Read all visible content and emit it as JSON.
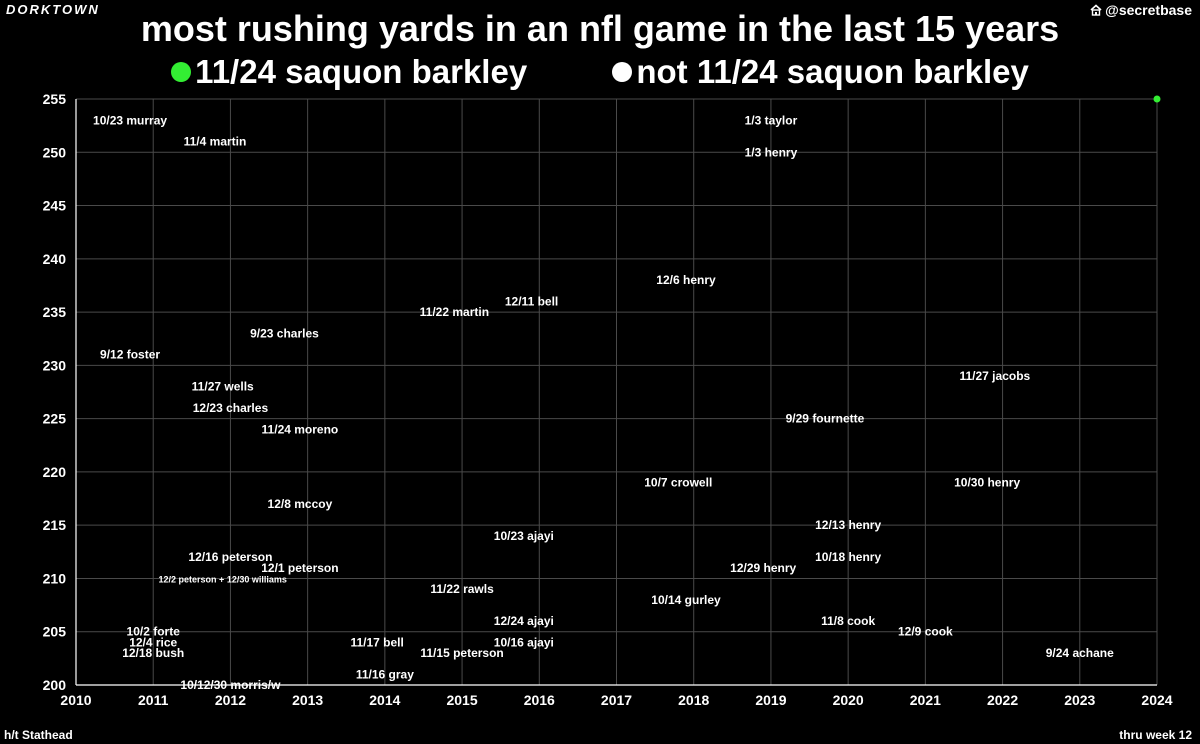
{
  "header": {
    "brand": "DORKTOWN",
    "handle": "@secretbase",
    "handle_icon": "house-icon"
  },
  "footer": {
    "left": "h/t Stathead",
    "right": "thru week 12"
  },
  "colors": {
    "background": "#000000",
    "highlight": "#33ee33",
    "other": "#ffffff",
    "grid": "#4a4a4a"
  },
  "chart_data": {
    "type": "scatter",
    "title": "most rushing yards in an nfl game in the last 15 years",
    "xlabel": "",
    "ylabel": "",
    "xlim": [
      2010,
      2024
    ],
    "ylim": [
      200,
      255
    ],
    "xticks": [
      "2010",
      "2011",
      "2012",
      "2013",
      "2014",
      "2015",
      "2016",
      "2017",
      "2018",
      "2019",
      "2020",
      "2021",
      "2022",
      "2023",
      "2024"
    ],
    "yticks": [
      "200",
      "205",
      "210",
      "215",
      "220",
      "225",
      "230",
      "235",
      "240",
      "245",
      "250",
      "255"
    ],
    "grid": true,
    "legend": [
      {
        "label": "11/24 saquon barkley",
        "color": "#33ee33"
      },
      {
        "label": "not 11/24 saquon barkley",
        "color": "#ffffff"
      }
    ],
    "series": [
      {
        "name": "11/24 saquon barkley",
        "points": [
          {
            "x": 2024.0,
            "y": 255,
            "label": ""
          }
        ]
      },
      {
        "name": "not 11/24 saquon barkley",
        "points": [
          {
            "x": 2010.7,
            "y": 253,
            "label": "10/23 murray"
          },
          {
            "x": 2011.8,
            "y": 251,
            "label": "11/4 martin"
          },
          {
            "x": 2019.0,
            "y": 253,
            "label": "1/3 taylor"
          },
          {
            "x": 2019.0,
            "y": 250,
            "label": "1/3 henry"
          },
          {
            "x": 2017.9,
            "y": 238,
            "label": "12/6 henry"
          },
          {
            "x": 2015.9,
            "y": 236,
            "label": "12/11 bell"
          },
          {
            "x": 2014.9,
            "y": 235,
            "label": "11/22 martin"
          },
          {
            "x": 2012.7,
            "y": 233,
            "label": "9/23 charles"
          },
          {
            "x": 2010.7,
            "y": 231,
            "label": "9/12 foster"
          },
          {
            "x": 2011.9,
            "y": 228,
            "label": "11/27 wells"
          },
          {
            "x": 2021.9,
            "y": 229,
            "label": "11/27 jacobs"
          },
          {
            "x": 2012.0,
            "y": 226,
            "label": "12/23 charles"
          },
          {
            "x": 2019.7,
            "y": 225,
            "label": "9/29 fournette"
          },
          {
            "x": 2012.9,
            "y": 224,
            "label": "11/24 moreno"
          },
          {
            "x": 2017.8,
            "y": 219,
            "label": "10/7 crowell"
          },
          {
            "x": 2021.8,
            "y": 219,
            "label": "10/30 henry"
          },
          {
            "x": 2012.9,
            "y": 217,
            "label": "12/8 mccoy"
          },
          {
            "x": 2020.0,
            "y": 215,
            "label": "12/13 henry"
          },
          {
            "x": 2015.8,
            "y": 214,
            "label": "10/23 ajayi"
          },
          {
            "x": 2012.0,
            "y": 212,
            "label": "12/16 peterson"
          },
          {
            "x": 2020.0,
            "y": 212,
            "label": "10/18 henry"
          },
          {
            "x": 2012.9,
            "y": 211,
            "label": "12/1 peterson"
          },
          {
            "x": 2018.9,
            "y": 211,
            "label": "12/29 henry"
          },
          {
            "x": 2011.9,
            "y": 210,
            "label": "12/2 peterson + 12/30 williams"
          },
          {
            "x": 2015.0,
            "y": 209,
            "label": "11/22 rawls"
          },
          {
            "x": 2017.9,
            "y": 208,
            "label": "10/14 gurley"
          },
          {
            "x": 2015.8,
            "y": 206,
            "label": "12/24 ajayi"
          },
          {
            "x": 2020.0,
            "y": 206,
            "label": "11/8 cook"
          },
          {
            "x": 2021.0,
            "y": 205,
            "label": "12/9 cook"
          },
          {
            "x": 2011.0,
            "y": 205,
            "label": "10/2 forte"
          },
          {
            "x": 2011.0,
            "y": 204,
            "label": "12/4 rice"
          },
          {
            "x": 2013.9,
            "y": 204,
            "label": "11/17 bell"
          },
          {
            "x": 2015.8,
            "y": 204,
            "label": "10/16 ajayi"
          },
          {
            "x": 2011.0,
            "y": 203,
            "label": "12/18 bush"
          },
          {
            "x": 2015.0,
            "y": 203,
            "label": "11/15 peterson"
          },
          {
            "x": 2023.0,
            "y": 203,
            "label": "9/24 achane"
          },
          {
            "x": 2014.0,
            "y": 201,
            "label": "11/16 gray"
          },
          {
            "x": 2012.0,
            "y": 200,
            "label": "10/12/30 morris/w"
          }
        ]
      }
    ]
  }
}
